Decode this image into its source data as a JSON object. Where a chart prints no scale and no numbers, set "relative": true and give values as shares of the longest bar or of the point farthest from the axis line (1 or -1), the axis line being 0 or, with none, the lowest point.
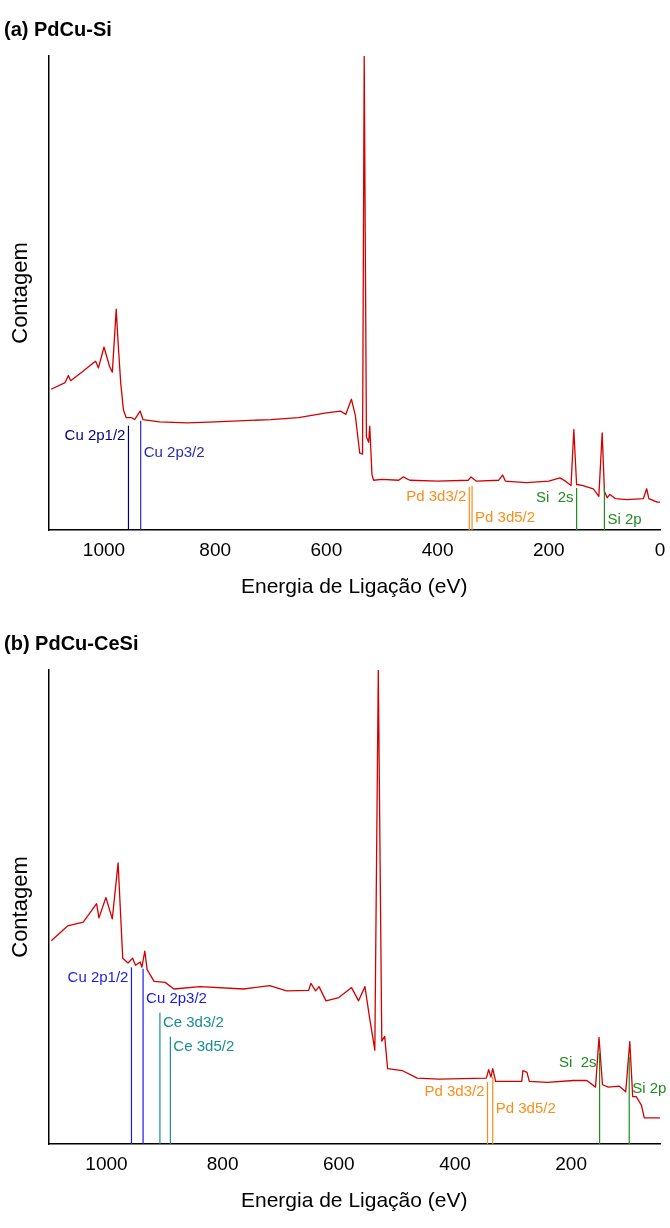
{
  "chart_data": [
    {
      "type": "line",
      "title": "(a) PdCu-Si",
      "xlabel": "Energia de Ligação (eV)",
      "ylabel": "Contagem",
      "relative": true,
      "marker": "none",
      "line_style": "solid",
      "legend": false,
      "grid": false,
      "tick_labels": "x",
      "xlim": [
        1100,
        0
      ],
      "xticks": [
        1000,
        800,
        600,
        400,
        200,
        0
      ],
      "series": [
        {
          "color": "#d40000",
          "x": [
            1095,
            1070,
            1064,
            1060,
            1040,
            1020,
            1015,
            1010,
            1000,
            990,
            985,
            978,
            975,
            970,
            965,
            960,
            950,
            945,
            935,
            930,
            900,
            850,
            800,
            700,
            650,
            600,
            575,
            565,
            555,
            548,
            540,
            535,
            532,
            528,
            524,
            522,
            518,
            515,
            500,
            470,
            462,
            450,
            400,
            345,
            340,
            330,
            290,
            283,
            278,
            240,
            200,
            180,
            170,
            160,
            155,
            150,
            140,
            120,
            110,
            104,
            100,
            95,
            90,
            80,
            60,
            30,
            24,
            20,
            5,
            0
          ],
          "values": [
            0.297,
            0.311,
            0.326,
            0.315,
            0.333,
            0.352,
            0.356,
            0.342,
            0.386,
            0.345,
            0.333,
            0.466,
            0.402,
            0.311,
            0.253,
            0.237,
            0.237,
            0.233,
            0.251,
            0.233,
            0.228,
            0.226,
            0.228,
            0.233,
            0.237,
            0.247,
            0.251,
            0.244,
            0.276,
            0.242,
            0.162,
            0.16,
            1,
            0.196,
            0.185,
            0.219,
            0.116,
            0.105,
            0.107,
            0.105,
            0.112,
            0.105,
            0.103,
            0.105,
            0.112,
            0.103,
            0.105,
            0.116,
            0.103,
            0.1,
            0.103,
            0.11,
            0.103,
            0.094,
            0.212,
            0.096,
            0.094,
            0.087,
            0.071,
            0.205,
            0.082,
            0.068,
            0.075,
            0.066,
            0.064,
            0.066,
            0.087,
            0.066,
            0.059,
            0.059
          ]
        }
      ],
      "ref_lines": [
        {
          "axis": "x",
          "value": 956,
          "label": "Cu 2p1/2",
          "color": "#000080"
        },
        {
          "axis": "x",
          "value": 934,
          "label": "Cu 2p3/2",
          "color": "#2a2ab0"
        },
        {
          "axis": "x",
          "value": 343,
          "label": "Pd 3d3/2",
          "color": "#ff8c1a"
        },
        {
          "axis": "x",
          "value": 338,
          "label": "Pd 3d5/2",
          "color": "#ff8c1a"
        },
        {
          "axis": "x",
          "value": 150,
          "label": "Si  2s",
          "color": "#1e8c1e"
        },
        {
          "axis": "x",
          "value": 100,
          "label": "Si 2p",
          "color": "#1e8c1e"
        }
      ]
    },
    {
      "type": "line",
      "title": "(b) PdCu-CeSi",
      "xlabel": "Energia de Ligação (eV)",
      "ylabel": "Contagem",
      "relative": true,
      "marker": "none",
      "line_style": "solid",
      "legend": false,
      "grid": false,
      "tick_labels": "x",
      "xlim": [
        1100,
        47
      ],
      "xticks": [
        1000,
        800,
        600,
        400,
        200
      ],
      "series": [
        {
          "color": "#d40000",
          "x": [
            1095,
            1067,
            1040,
            1017,
            1013,
            1001,
            990,
            980,
            972,
            963,
            955,
            950,
            942,
            939,
            934,
            930,
            918,
            899,
            884,
            839,
            764,
            719,
            690,
            652,
            648,
            640,
            634,
            622,
            600,
            578,
            566,
            555,
            547,
            538,
            532,
            526,
            521,
            516,
            491,
            465,
            428,
            346,
            342,
            338,
            335,
            330,
            285,
            283,
            276,
            272,
            241,
            196,
            173,
            158,
            152,
            146,
            136,
            117,
            106,
            99,
            94,
            88,
            79,
            74,
            47
          ],
          "values": [
            0.429,
            0.46,
            0.468,
            0.507,
            0.477,
            0.52,
            0.475,
            0.593,
            0.392,
            0.382,
            0.392,
            0.377,
            0.384,
            0.373,
            0.407,
            0.368,
            0.343,
            0.341,
            0.327,
            0.332,
            0.327,
            0.334,
            0.323,
            0.324,
            0.339,
            0.323,
            0.332,
            0.302,
            0.309,
            0.33,
            0.302,
            0.332,
            0.266,
            0.198,
            1,
            0.217,
            0.227,
            0.159,
            0.155,
            0.139,
            0.137,
            0.139,
            0.157,
            0.141,
            0.159,
            0.132,
            0.132,
            0.155,
            0.151,
            0.132,
            0.13,
            0.134,
            0.134,
            0.12,
            0.225,
            0.125,
            0.12,
            0.122,
            0.11,
            0.216,
            0.1,
            0.1,
            0.082,
            0.055,
            0.055
          ]
        }
      ],
      "ref_lines": [
        {
          "axis": "x",
          "value": 957,
          "label": "Cu 2p1/2",
          "color": "#1a1aee"
        },
        {
          "axis": "x",
          "value": 937,
          "label": "Cu 2p3/2",
          "color": "#1a1aee"
        },
        {
          "axis": "x",
          "value": 908,
          "label": "Ce 3d3/2",
          "color": "#168f8f"
        },
        {
          "axis": "x",
          "value": 890,
          "label": "Ce 3d5/2",
          "color": "#168f8f"
        },
        {
          "axis": "x",
          "value": 344,
          "label": "Pd 3d3/2",
          "color": "#ff8c1a"
        },
        {
          "axis": "x",
          "value": 335,
          "label": "Pd 3d5/2",
          "color": "#ff8c1a"
        },
        {
          "axis": "x",
          "value": 151,
          "label": "Si  2s",
          "color": "#1e8c1e"
        },
        {
          "axis": "x",
          "value": 100,
          "label": "Si 2p",
          "color": "#1e8c1e"
        }
      ]
    }
  ]
}
